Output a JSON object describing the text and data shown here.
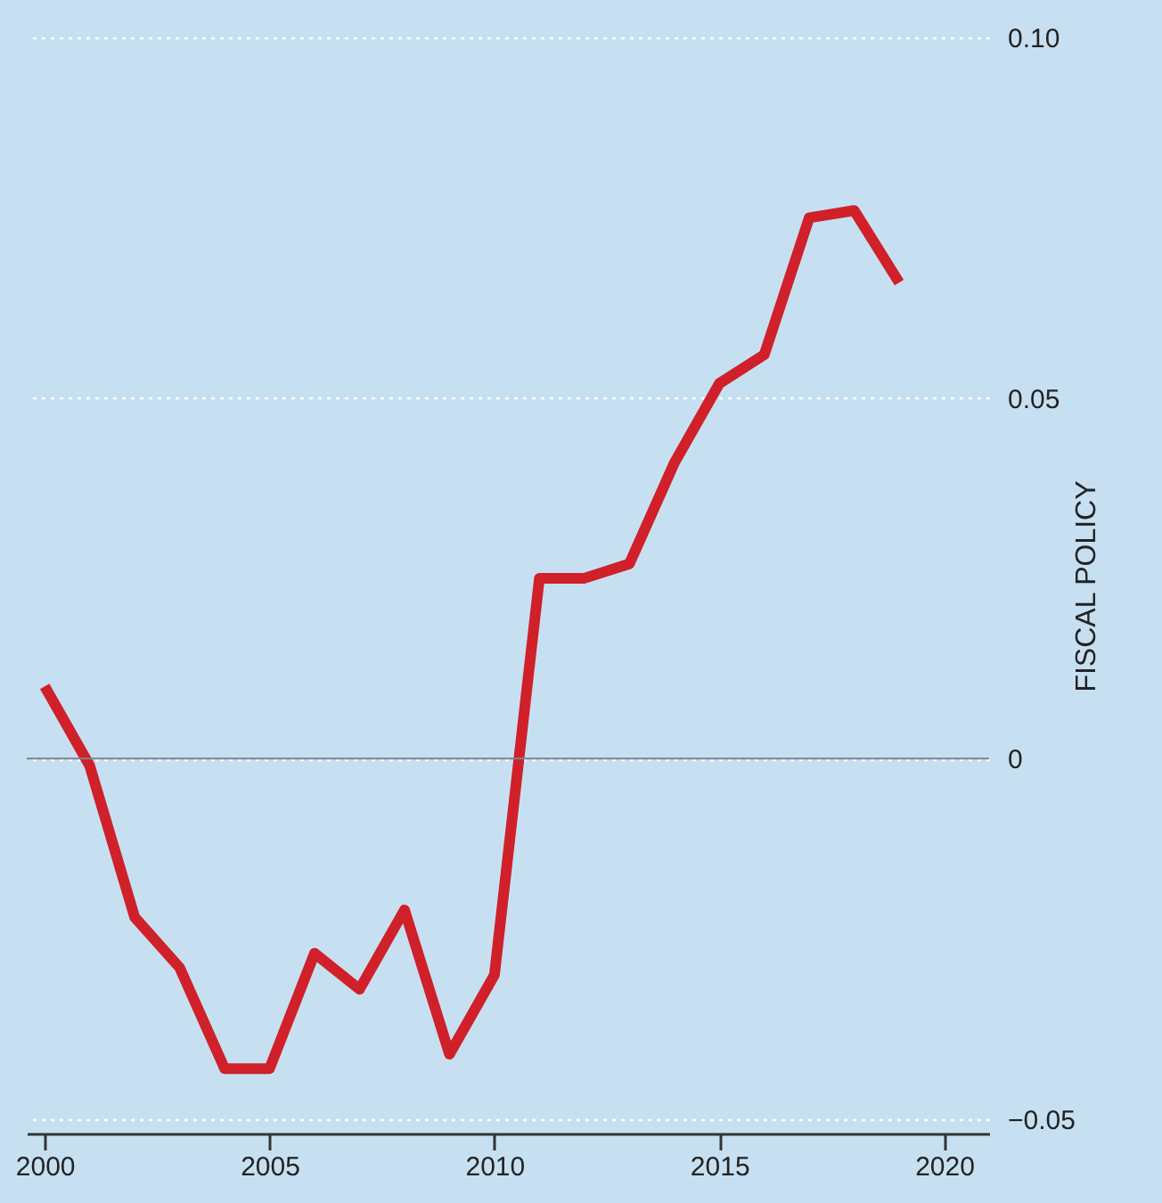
{
  "chart_data": {
    "type": "line",
    "ylabel": "FISCAL POLICY",
    "x": [
      2000,
      2001,
      2002,
      2003,
      2004,
      2005,
      2006,
      2007,
      2008,
      2009,
      2010,
      2011,
      2012,
      2013,
      2014,
      2015,
      2016,
      2017,
      2018,
      2019
    ],
    "series": [
      {
        "color": "#d0202a",
        "values": [
          0.01,
          -0.001,
          -0.022,
          -0.029,
          -0.043,
          -0.043,
          -0.027,
          -0.032,
          -0.021,
          -0.041,
          -0.03,
          0.025,
          0.025,
          0.027,
          0.041,
          0.052,
          0.056,
          0.075,
          0.076,
          0.066
        ]
      }
    ],
    "xlim": [
      1999.6,
      2021
    ],
    "xticks": [
      2000,
      2005,
      2010,
      2015,
      2020
    ],
    "ylim": [
      -0.052,
      0.1
    ],
    "yticks": [
      {
        "value": -0.05,
        "label": "−0.05"
      },
      {
        "value": 0,
        "label": "0"
      },
      {
        "value": 0.05,
        "label": "0.05"
      },
      {
        "value": 0.1,
        "label": "0.10"
      }
    ],
    "grid": "y",
    "line_style": "solid",
    "ref_lines": [
      {
        "axis": "y",
        "value": 0,
        "color": "#7a8590"
      }
    ]
  }
}
